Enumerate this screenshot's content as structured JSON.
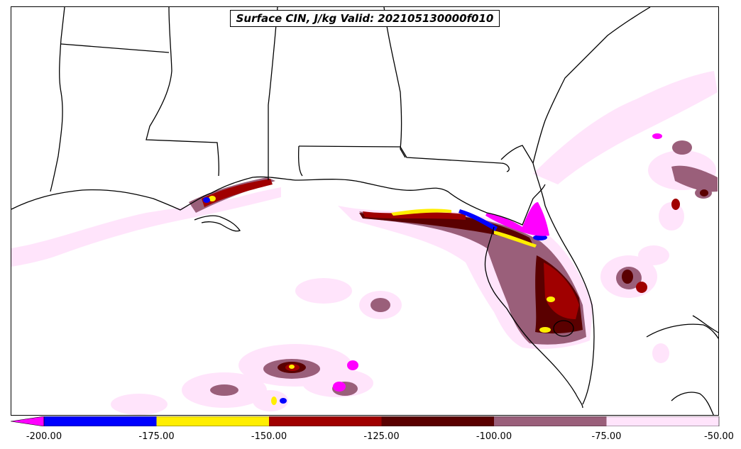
{
  "title": "Surface CIN, J/kg Valid: 202105130000f010",
  "colorbar": {
    "extend": "min",
    "bins": [
      {
        "from": -200,
        "to": -175,
        "color": "#0000ff"
      },
      {
        "from": -175,
        "to": -150,
        "color": "#ffee00"
      },
      {
        "from": -150,
        "to": -125,
        "color": "#a00000"
      },
      {
        "from": -125,
        "to": -100,
        "color": "#5a0000"
      },
      {
        "from": -100,
        "to": -75,
        "color": "#9a5f7a"
      },
      {
        "from": -75,
        "to": -50,
        "color": "#ffe4fb"
      }
    ],
    "below_min_color": "#ff00ff",
    "tick_labels": [
      "-200.00",
      "-175.00",
      "-150.00",
      "-125.00",
      "-100.00",
      "-75.00",
      "-50.00"
    ]
  },
  "colors": {
    "magenta": "#ff00ff",
    "blue": "#0000ff",
    "yellow": "#ffee00",
    "red": "#a00000",
    "darkred": "#5a0000",
    "mauve": "#9a5f7a",
    "pink": "#ffe4fb",
    "state_lines": "#000000"
  }
}
